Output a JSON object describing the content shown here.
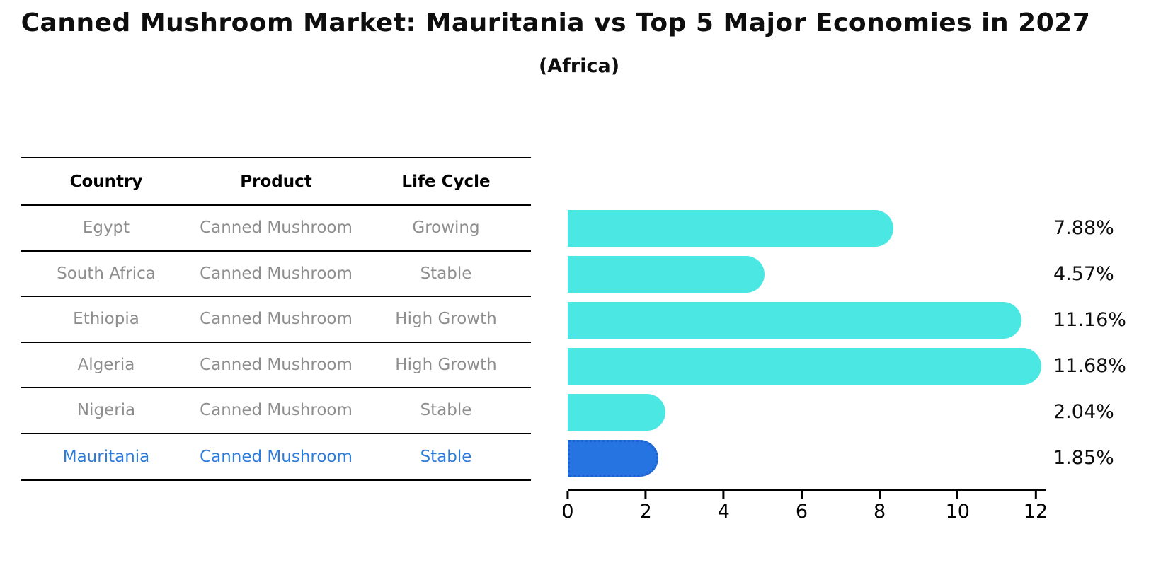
{
  "title": "Canned Mushroom Market: Mauritania vs Top 5 Major Economies in 2027",
  "subtitle": "(Africa)",
  "table": {
    "headers": [
      "Country",
      "Product",
      "Life Cycle"
    ],
    "rows": [
      {
        "country": "Egypt",
        "product": "Canned Mushroom",
        "life_cycle": "Growing"
      },
      {
        "country": "South Africa",
        "product": "Canned Mushroom",
        "life_cycle": "Stable"
      },
      {
        "country": "Ethiopia",
        "product": "Canned Mushroom",
        "life_cycle": "High Growth"
      },
      {
        "country": "Algeria",
        "product": "Canned Mushroom",
        "life_cycle": "High Growth"
      },
      {
        "country": "Nigeria",
        "product": "Canned Mushroom",
        "life_cycle": "Stable"
      },
      {
        "country": "Mauritania",
        "product": "Canned Mushroom",
        "life_cycle": "Stable"
      }
    ]
  },
  "chart_data": {
    "type": "bar",
    "orientation": "horizontal",
    "categories": [
      "Egypt",
      "South Africa",
      "Ethiopia",
      "Algeria",
      "Nigeria",
      "Mauritania"
    ],
    "values": [
      7.88,
      4.57,
      11.16,
      11.68,
      2.04,
      1.85
    ],
    "labels": [
      "7.88%",
      "4.57%",
      "11.16%",
      "11.68%",
      "2.04%",
      "1.85%"
    ],
    "xticks": [
      0,
      2,
      4,
      6,
      8,
      10,
      12
    ],
    "xlim": [
      0,
      12
    ],
    "grid": false,
    "legend": "none",
    "highlight_index": 5,
    "value_label_position": "right"
  },
  "colors": {
    "bar_cyan": "#4AE7E3",
    "bar_blue": "#2574E2",
    "highlight_border": "#1D5FD0",
    "highlight_text": "#2E7CD9",
    "row_gray": "#8E8E8E",
    "axis": "#000000"
  }
}
